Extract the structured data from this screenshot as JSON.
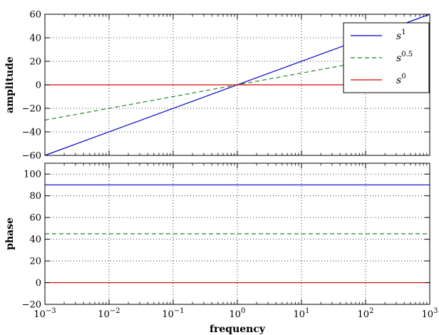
{
  "chart_data": [
    {
      "type": "line",
      "xlabel": "",
      "ylabel": "amplitude",
      "xscale": "log",
      "xlim": [
        0.001,
        1000
      ],
      "ylim": [
        -60,
        60
      ],
      "yticks": [
        -60,
        -40,
        -20,
        0,
        20,
        40,
        60
      ],
      "ytick_labels": [
        "−60",
        "−40",
        "−20",
        "0",
        "20",
        "40",
        "60"
      ],
      "grid": true,
      "legend": "top-right",
      "series": [
        {
          "name": "s^1",
          "legend_base": "s",
          "legend_exp": "1",
          "color": "#0000cc",
          "style": "solid",
          "x": [
            0.001,
            1000
          ],
          "y": [
            -60,
            60
          ]
        },
        {
          "name": "s^0.5",
          "legend_base": "s",
          "legend_exp": "0.5",
          "color": "#228b22",
          "style": "dashed",
          "x": [
            0.001,
            1000
          ],
          "y": [
            -30,
            30
          ]
        },
        {
          "name": "s^0",
          "legend_base": "s",
          "legend_exp": "0",
          "color": "#e00000",
          "style": "solid",
          "x": [
            0.001,
            1000
          ],
          "y": [
            0,
            0
          ]
        }
      ]
    },
    {
      "type": "line",
      "xlabel": "frequency",
      "ylabel": "phase",
      "xscale": "log",
      "xlim": [
        0.001,
        1000
      ],
      "ylim": [
        -20,
        110
      ],
      "yticks": [
        -20,
        0,
        20,
        40,
        60,
        80,
        100
      ],
      "ytick_labels": [
        "−20",
        "0",
        "20",
        "40",
        "60",
        "80",
        "100"
      ],
      "xticks": [
        0.001,
        0.01,
        0.1,
        1,
        10,
        100,
        1000
      ],
      "xtick_exps": [
        "−3",
        "−2",
        "−1",
        "0",
        "1",
        "2",
        "3"
      ],
      "grid": true,
      "series": [
        {
          "name": "s^1",
          "color": "#0000cc",
          "style": "solid",
          "x": [
            0.001,
            1000
          ],
          "y": [
            90,
            90
          ]
        },
        {
          "name": "s^0.5",
          "color": "#228b22",
          "style": "dashed",
          "x": [
            0.001,
            1000
          ],
          "y": [
            45,
            45
          ]
        },
        {
          "name": "s^0",
          "color": "#e00000",
          "style": "solid",
          "x": [
            0.001,
            1000
          ],
          "y": [
            0,
            0
          ]
        }
      ]
    }
  ]
}
